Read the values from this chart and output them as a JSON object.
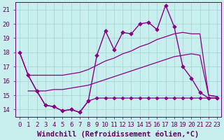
{
  "title": "",
  "xlabel": "Windchill (Refroidissement éolien,°C)",
  "ylabel": "",
  "xlim": [
    -0.5,
    23.5
  ],
  "ylim": [
    13.5,
    21.5
  ],
  "background_color": "#c8eeee",
  "grid_color": "#a8d8d8",
  "line_color": "#880088",
  "xticks": [
    0,
    1,
    2,
    3,
    4,
    5,
    6,
    7,
    8,
    9,
    10,
    11,
    12,
    13,
    14,
    15,
    16,
    17,
    18,
    19,
    20,
    21,
    22,
    23
  ],
  "yticks": [
    14,
    15,
    16,
    17,
    18,
    19,
    20,
    21
  ],
  "line1_x": [
    0,
    1,
    2,
    3,
    4,
    5,
    6,
    7,
    8,
    9,
    10,
    11,
    12,
    13,
    14,
    15,
    16,
    17,
    18,
    19,
    20,
    21,
    22,
    23
  ],
  "line1_y": [
    18.0,
    16.4,
    15.3,
    14.3,
    14.2,
    13.9,
    14.0,
    13.8,
    14.6,
    17.8,
    19.5,
    18.2,
    19.4,
    19.3,
    20.0,
    20.1,
    19.6,
    21.3,
    19.8,
    17.0,
    16.2,
    15.2,
    14.8,
    14.8
  ],
  "line2_x": [
    0,
    1,
    2,
    3,
    4,
    5,
    6,
    7,
    8,
    9,
    10,
    11,
    12,
    13,
    14,
    15,
    16,
    17,
    18,
    19,
    20,
    21,
    22,
    23
  ],
  "line2_y": [
    18.0,
    16.4,
    16.4,
    16.4,
    16.4,
    16.4,
    16.5,
    16.6,
    16.8,
    17.1,
    17.4,
    17.6,
    17.9,
    18.1,
    18.4,
    18.6,
    18.9,
    19.1,
    19.3,
    19.4,
    19.3,
    19.3,
    15.0,
    14.9
  ],
  "line3_x": [
    1,
    2,
    3,
    4,
    5,
    6,
    7,
    8,
    9,
    10,
    11,
    12,
    13,
    14,
    15,
    16,
    17,
    18,
    19,
    20,
    21,
    22,
    23
  ],
  "line3_y": [
    15.3,
    15.3,
    15.3,
    15.4,
    15.4,
    15.5,
    15.6,
    15.7,
    15.9,
    16.1,
    16.3,
    16.5,
    16.7,
    16.9,
    17.1,
    17.3,
    17.5,
    17.7,
    17.8,
    17.9,
    17.8,
    15.0,
    14.9
  ],
  "line4_x": [
    1,
    2,
    3,
    4,
    5,
    6,
    7,
    8,
    9,
    10,
    11,
    12,
    13,
    14,
    15,
    16,
    17,
    18,
    19,
    20,
    21,
    22,
    23
  ],
  "line4_y": [
    16.4,
    15.3,
    14.3,
    14.2,
    13.9,
    14.0,
    13.8,
    14.6,
    14.8,
    14.8,
    14.8,
    14.8,
    14.8,
    14.8,
    14.8,
    14.8,
    14.8,
    14.8,
    14.8,
    14.8,
    14.8,
    14.8,
    14.8
  ],
  "font_color": "#660066",
  "tick_fontsize": 6.5,
  "label_fontsize": 7.5
}
